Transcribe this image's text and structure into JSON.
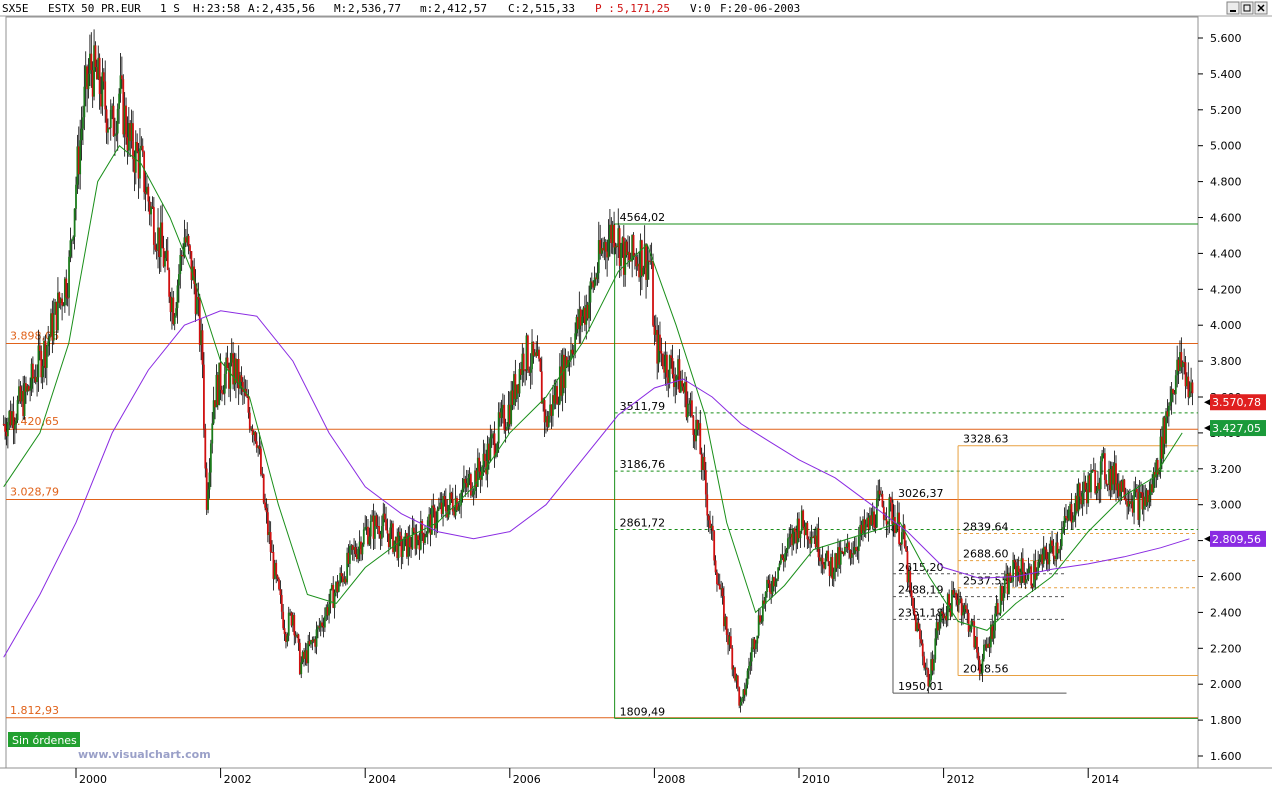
{
  "header": {
    "symbol": "SX5E",
    "name": "ESTX 50 PR.EUR",
    "timeframe": "1 S",
    "hour_label": "H:",
    "hour": "23:58",
    "open_label": "A:",
    "open": "2,435,56",
    "high_label": "M:",
    "high": "2,536,77",
    "low_label": "m:",
    "low": "2,412,57",
    "close_label": "C:",
    "close": "2,515,33",
    "p_label": "P :",
    "p": "5,171,25",
    "volume_label": "V:",
    "volume": "0",
    "date_label": "F:",
    "date": "20-06-2003"
  },
  "window_buttons": [
    "minimize-icon",
    "restore-icon",
    "close-icon"
  ],
  "watermark": "www.visualchart.com",
  "orders_badge": "Sin órdenes",
  "chart_data": {
    "type": "candlestick",
    "x_ticks": [
      "2000",
      "2002",
      "2004",
      "2006",
      "2008",
      "2010",
      "2012",
      "2014"
    ],
    "y_ticks": [
      "5.600",
      "5.400",
      "5.200",
      "5.000",
      "4.800",
      "4.600",
      "4.400",
      "4.200",
      "4.000",
      "3.800",
      "3.600",
      "3.400",
      "3.200",
      "3.000",
      "2.800",
      "2.600",
      "2.400",
      "2.200",
      "2.000",
      "1.800",
      "1.600"
    ],
    "ylim": [
      1600,
      5700
    ],
    "price_path": [
      [
        1999.0,
        3450
      ],
      [
        1999.3,
        3600
      ],
      [
        1999.6,
        3900
      ],
      [
        1999.9,
        4300
      ],
      [
        2000.0,
        4800
      ],
      [
        2000.1,
        5200
      ],
      [
        2000.2,
        5450
      ],
      [
        2000.35,
        5300
      ],
      [
        2000.5,
        5100
      ],
      [
        2000.6,
        5300
      ],
      [
        2000.75,
        5000
      ],
      [
        2000.9,
        4900
      ],
      [
        2001.0,
        4700
      ],
      [
        2001.2,
        4400
      ],
      [
        2001.35,
        4100
      ],
      [
        2001.5,
        4500
      ],
      [
        2001.65,
        4200
      ],
      [
        2001.75,
        3800
      ],
      [
        2001.8,
        3000
      ],
      [
        2001.9,
        3600
      ],
      [
        2002.0,
        3700
      ],
      [
        2002.2,
        3750
      ],
      [
        2002.4,
        3500
      ],
      [
        2002.5,
        3400
      ],
      [
        2002.6,
        3000
      ],
      [
        2002.75,
        2600
      ],
      [
        2002.9,
        2300
      ],
      [
        2003.0,
        2400
      ],
      [
        2003.1,
        2100
      ],
      [
        2003.3,
        2250
      ],
      [
        2003.5,
        2450
      ],
      [
        2003.8,
        2700
      ],
      [
        2004.0,
        2850
      ],
      [
        2004.2,
        2900
      ],
      [
        2004.5,
        2750
      ],
      [
        2004.8,
        2850
      ],
      [
        2005.0,
        2950
      ],
      [
        2005.3,
        3050
      ],
      [
        2005.6,
        3200
      ],
      [
        2006.0,
        3550
      ],
      [
        2006.2,
        3850
      ],
      [
        2006.4,
        3750
      ],
      [
        2006.5,
        3450
      ],
      [
        2006.7,
        3700
      ],
      [
        2006.9,
        3950
      ],
      [
        2007.1,
        4150
      ],
      [
        2007.3,
        4450
      ],
      [
        2007.45,
        4550
      ],
      [
        2007.6,
        4350
      ],
      [
        2007.8,
        4400
      ],
      [
        2007.95,
        4350
      ],
      [
        2008.0,
        3900
      ],
      [
        2008.15,
        3800
      ],
      [
        2008.35,
        3700
      ],
      [
        2008.6,
        3400
      ],
      [
        2008.8,
        2800
      ],
      [
        2008.95,
        2400
      ],
      [
        2009.1,
        2100
      ],
      [
        2009.2,
        1850
      ],
      [
        2009.35,
        2200
      ],
      [
        2009.5,
        2450
      ],
      [
        2009.7,
        2650
      ],
      [
        2009.9,
        2800
      ],
      [
        2010.0,
        2900
      ],
      [
        2010.2,
        2850
      ],
      [
        2010.4,
        2650
      ],
      [
        2010.6,
        2700
      ],
      [
        2010.8,
        2800
      ],
      [
        2011.0,
        2900
      ],
      [
        2011.1,
        3000
      ],
      [
        2011.3,
        2950
      ],
      [
        2011.45,
        2800
      ],
      [
        2011.55,
        2450
      ],
      [
        2011.7,
        2200
      ],
      [
        2011.8,
        2000
      ],
      [
        2011.9,
        2300
      ],
      [
        2012.0,
        2400
      ],
      [
        2012.2,
        2500
      ],
      [
        2012.4,
        2300
      ],
      [
        2012.5,
        2100
      ],
      [
        2012.6,
        2200
      ],
      [
        2012.75,
        2450
      ],
      [
        2013.0,
        2650
      ],
      [
        2013.2,
        2600
      ],
      [
        2013.4,
        2700
      ],
      [
        2013.6,
        2800
      ],
      [
        2013.8,
        3000
      ],
      [
        2014.0,
        3100
      ],
      [
        2014.2,
        3200
      ],
      [
        2014.5,
        3100
      ],
      [
        2014.7,
        3000
      ],
      [
        2014.85,
        3050
      ],
      [
        2015.0,
        3300
      ],
      [
        2015.15,
        3650
      ],
      [
        2015.3,
        3800
      ],
      [
        2015.45,
        3570
      ]
    ],
    "moving_averages": [
      {
        "color": "#1a8f1a",
        "points": [
          [
            1999.0,
            3100
          ],
          [
            1999.5,
            3400
          ],
          [
            1999.9,
            3900
          ],
          [
            2000.3,
            4800
          ],
          [
            2000.6,
            5000
          ],
          [
            2000.9,
            4900
          ],
          [
            2001.3,
            4600
          ],
          [
            2001.6,
            4300
          ],
          [
            2002.0,
            3800
          ],
          [
            2002.4,
            3600
          ],
          [
            2002.8,
            3000
          ],
          [
            2003.2,
            2500
          ],
          [
            2003.6,
            2450
          ],
          [
            2004.0,
            2650
          ],
          [
            2004.5,
            2800
          ],
          [
            2005.0,
            2900
          ],
          [
            2005.5,
            3100
          ],
          [
            2006.0,
            3400
          ],
          [
            2006.5,
            3600
          ],
          [
            2007.0,
            3900
          ],
          [
            2007.5,
            4300
          ],
          [
            2007.9,
            4450
          ],
          [
            2008.3,
            4000
          ],
          [
            2008.7,
            3500
          ],
          [
            2009.0,
            2900
          ],
          [
            2009.4,
            2400
          ],
          [
            2009.8,
            2550
          ],
          [
            2010.2,
            2750
          ],
          [
            2010.6,
            2800
          ],
          [
            2011.0,
            2850
          ],
          [
            2011.4,
            2900
          ],
          [
            2011.8,
            2600
          ],
          [
            2012.2,
            2350
          ],
          [
            2012.6,
            2300
          ],
          [
            2013.0,
            2450
          ],
          [
            2013.5,
            2600
          ],
          [
            2014.0,
            2850
          ],
          [
            2014.5,
            3050
          ],
          [
            2014.9,
            3150
          ],
          [
            2015.3,
            3400
          ]
        ]
      },
      {
        "color": "#8a2be2",
        "points": [
          [
            1999.0,
            2150
          ],
          [
            1999.5,
            2500
          ],
          [
            2000.0,
            2900
          ],
          [
            2000.5,
            3400
          ],
          [
            2001.0,
            3750
          ],
          [
            2001.5,
            4000
          ],
          [
            2002.0,
            4080
          ],
          [
            2002.5,
            4050
          ],
          [
            2003.0,
            3800
          ],
          [
            2003.5,
            3400
          ],
          [
            2004.0,
            3100
          ],
          [
            2004.5,
            2950
          ],
          [
            2005.0,
            2850
          ],
          [
            2005.5,
            2810
          ],
          [
            2006.0,
            2850
          ],
          [
            2006.5,
            3000
          ],
          [
            2007.0,
            3250
          ],
          [
            2007.5,
            3500
          ],
          [
            2008.0,
            3650
          ],
          [
            2008.4,
            3700
          ],
          [
            2008.8,
            3600
          ],
          [
            2009.2,
            3450
          ],
          [
            2009.6,
            3350
          ],
          [
            2010.0,
            3250
          ],
          [
            2010.5,
            3150
          ],
          [
            2011.0,
            3000
          ],
          [
            2011.5,
            2850
          ],
          [
            2012.0,
            2650
          ],
          [
            2012.5,
            2590
          ],
          [
            2013.0,
            2600
          ],
          [
            2013.5,
            2640
          ],
          [
            2014.0,
            2670
          ],
          [
            2014.5,
            2710
          ],
          [
            2015.0,
            2760
          ],
          [
            2015.4,
            2810
          ]
        ]
      }
    ],
    "horizontal_lines": [
      {
        "label": "3.898,06",
        "value": 3898.06,
        "color": "#e0621a"
      },
      {
        "label": "3.420,65",
        "value": 3420.65,
        "color": "#e0621a"
      },
      {
        "label": "3.028,79",
        "value": 3028.79,
        "color": "#e0621a"
      },
      {
        "label": "1.812,93",
        "value": 1812.93,
        "color": "#e0621a"
      }
    ],
    "fibonacci_sets": [
      {
        "color": "#1a8f1a",
        "x_start": 2007.45,
        "x_end": 2015.6,
        "anchor_label": "4564,02",
        "levels": [
          {
            "label": "4564,02",
            "value": 4564.02,
            "style": "solid"
          },
          {
            "label": "3511,79",
            "value": 3511.79,
            "style": "dashed"
          },
          {
            "label": "3186,76",
            "value": 3186.76,
            "style": "dashed"
          },
          {
            "label": "2861,72",
            "value": 2861.72,
            "style": "dashed"
          },
          {
            "label": "1809,49",
            "value": 1809.49,
            "style": "solid"
          }
        ]
      },
      {
        "color": "#555555",
        "x_start": 2011.3,
        "x_end": 2013.7,
        "anchor_label": "3026,37",
        "levels": [
          {
            "label": "3026,37",
            "value": 3026.37,
            "style": "none"
          },
          {
            "label": "2615,20",
            "value": 2615.2,
            "style": "dashed"
          },
          {
            "label": "2488,19",
            "value": 2488.19,
            "style": "dashed"
          },
          {
            "label": "2361,18",
            "value": 2361.18,
            "style": "dashed"
          },
          {
            "label": "1950,01",
            "value": 1950.01,
            "style": "solid"
          }
        ]
      },
      {
        "color": "#e8a040",
        "x_start": 2012.2,
        "x_end": 2015.6,
        "anchor_label": "3328.63",
        "levels": [
          {
            "label": "3328.63",
            "value": 3328.63,
            "style": "solid"
          },
          {
            "label": "2839.64",
            "value": 2839.64,
            "style": "dashed"
          },
          {
            "label": "2688.60",
            "value": 2688.6,
            "style": "dashed"
          },
          {
            "label": "2537.55",
            "value": 2537.55,
            "style": "dashed"
          },
          {
            "label": "2048.56",
            "value": 2048.56,
            "style": "solid"
          }
        ]
      }
    ],
    "price_tags": [
      {
        "label": "3.570,78",
        "value": 3570.78,
        "color": "#e02020"
      },
      {
        "label": "3.427,05",
        "value": 3427.05,
        "color": "#1a9a3a"
      },
      {
        "label": "2.809,56",
        "value": 2809.56,
        "color": "#8a2be2"
      }
    ],
    "colors": {
      "up": "#1a7a1a",
      "down": "#d01010",
      "grid": "#c8c8c8"
    }
  }
}
